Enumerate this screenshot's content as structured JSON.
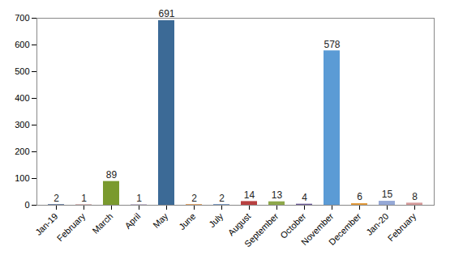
{
  "chart_data": {
    "type": "bar",
    "categories": [
      "Jan-19",
      "February",
      "March",
      "April",
      "May",
      "June",
      "July",
      "August",
      "September",
      "October",
      "November",
      "December",
      "Jan-20",
      "February"
    ],
    "values": [
      2,
      1,
      89,
      1,
      691,
      2,
      2,
      14,
      13,
      4,
      578,
      6,
      15,
      8
    ],
    "colors": [
      "#2e4d7b",
      "#8c3030",
      "#7a9a2e",
      "#5a3d7a",
      "#3c6a96",
      "#d37a1f",
      "#3d6aa8",
      "#b84040",
      "#8ea84a",
      "#6b5a96",
      "#5b9bd5",
      "#e39a3a",
      "#95a8d6",
      "#d59a9a"
    ],
    "ylim": [
      0,
      700
    ],
    "yticks": [
      0,
      100,
      200,
      300,
      400,
      500,
      600,
      700
    ],
    "grid": false,
    "data_labels": true
  }
}
